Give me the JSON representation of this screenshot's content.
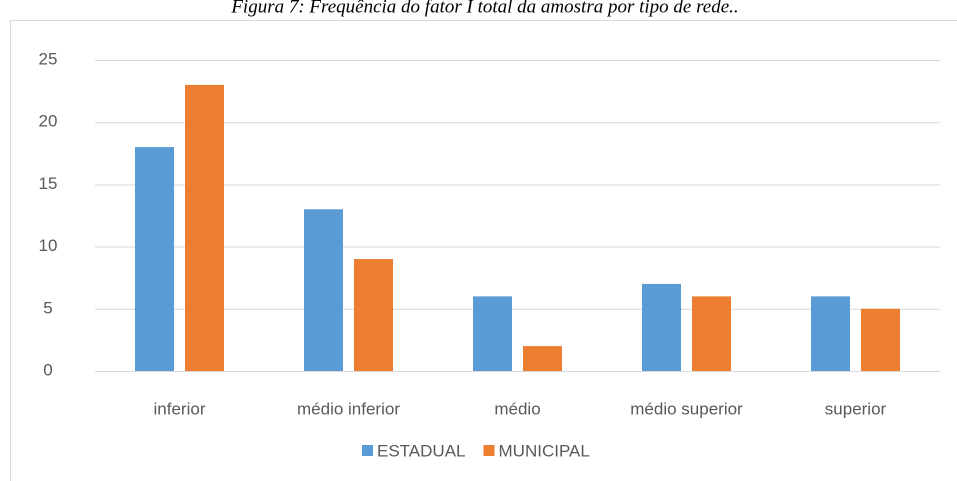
{
  "chart_data": {
    "type": "bar",
    "title": "Figura 7: Frequência do fator I total da amostra por tipo de rede..",
    "categories": [
      "inferior",
      "médio inferior",
      "médio",
      "médio superior",
      "superior"
    ],
    "series": [
      {
        "name": "ESTADUAL",
        "color": "#5b9bd5",
        "values": [
          18,
          13,
          6,
          7,
          6
        ]
      },
      {
        "name": "MUNICIPAL",
        "color": "#ed7d31",
        "values": [
          23,
          9,
          2,
          6,
          5
        ]
      }
    ],
    "ylim": [
      0,
      25
    ],
    "yticks": [
      0,
      5,
      10,
      15,
      20,
      25
    ],
    "grid": true,
    "legend": "bottom"
  }
}
